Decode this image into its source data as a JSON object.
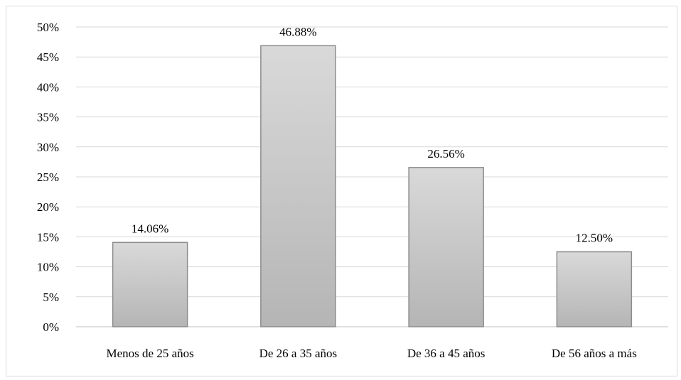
{
  "chart_data": {
    "type": "bar",
    "title": "",
    "xlabel": "",
    "ylabel": "",
    "ylim": [
      0,
      50
    ],
    "yticks": [
      "0%",
      "5%",
      "10%",
      "15%",
      "20%",
      "25%",
      "30%",
      "35%",
      "40%",
      "45%",
      "50%"
    ],
    "categories": [
      "Menos de 25 años",
      "De 26 a 35 años",
      "De 36 a 45 años",
      "De 56 años a más"
    ],
    "values": [
      14.06,
      46.88,
      26.56,
      12.5
    ],
    "data_labels": [
      "14.06%",
      "46.88%",
      "26.56%",
      "12.50%"
    ],
    "grid": true,
    "legend": "none",
    "colors": {
      "bar_top": "#d9d9d9",
      "bar_bottom": "#b5b5b5",
      "bar_edge": "#8c8c8c",
      "grid": "#d9d9d9",
      "axis": "#bfbfbf"
    }
  }
}
